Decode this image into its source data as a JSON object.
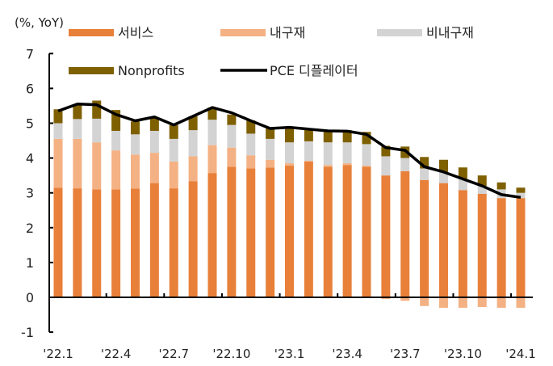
{
  "chart_data": {
    "type": "bar",
    "stacked": true,
    "ylabel": "(%, YoY)",
    "ylim": [
      -1,
      7
    ],
    "yticks": [
      -1,
      0,
      1,
      2,
      3,
      4,
      5,
      6,
      7
    ],
    "grid": false,
    "legend_position": "top",
    "categories": [
      "'22.1",
      "'22.2",
      "'22.3",
      "'22.4",
      "'22.5",
      "'22.6",
      "'22.7",
      "'22.8",
      "'22.9",
      "'22.10",
      "'22.11",
      "'22.12",
      "'23.1",
      "'23.2",
      "'23.3",
      "'23.4",
      "'23.5",
      "'23.6",
      "'23.7",
      "'23.8",
      "'23.9",
      "'23.10",
      "'23.11",
      "'23.12",
      "'24.1"
    ],
    "xtick_labels": [
      "'22.1",
      "'22.4",
      "'22.7",
      "'22.10",
      "'23.1",
      "'23.4",
      "'23.7",
      "'23.10",
      "'24.1"
    ],
    "series": [
      {
        "name": "서비스",
        "type": "bar",
        "color": "#E8803A",
        "values": [
          3.15,
          3.13,
          3.1,
          3.1,
          3.12,
          3.28,
          3.13,
          3.33,
          3.57,
          3.75,
          3.7,
          3.73,
          3.78,
          3.9,
          3.75,
          3.8,
          3.75,
          3.5,
          3.62,
          3.37,
          3.28,
          3.08,
          2.97,
          2.85,
          2.85
        ]
      },
      {
        "name": "내구재",
        "type": "bar",
        "color": "#F4B183",
        "values": [
          1.4,
          1.42,
          1.35,
          1.12,
          0.98,
          0.87,
          0.77,
          0.72,
          0.8,
          0.55,
          0.38,
          0.22,
          0.07,
          0.02,
          0.05,
          0.05,
          0.03,
          -0.05,
          -0.1,
          -0.25,
          -0.3,
          -0.3,
          -0.28,
          -0.3,
          -0.3
        ]
      },
      {
        "name": "비내구재",
        "type": "bar",
        "color": "#D3D3D3",
        "values": [
          0.45,
          0.57,
          0.68,
          0.56,
          0.58,
          0.63,
          0.65,
          0.75,
          0.73,
          0.65,
          0.62,
          0.6,
          0.6,
          0.56,
          0.65,
          0.6,
          0.62,
          0.55,
          0.38,
          0.33,
          0.32,
          0.32,
          0.23,
          0.25,
          0.15
        ]
      },
      {
        "name": "Nonprofits",
        "type": "bar",
        "color": "#7F6000",
        "values": [
          0.4,
          0.4,
          0.52,
          0.6,
          0.37,
          0.37,
          0.4,
          0.4,
          0.35,
          0.3,
          0.38,
          0.3,
          0.42,
          0.34,
          0.3,
          0.35,
          0.35,
          0.3,
          0.33,
          0.33,
          0.35,
          0.33,
          0.3,
          0.2,
          0.15
        ]
      },
      {
        "name": "PCE 디플레이터",
        "type": "line",
        "color": "#000000",
        "values": [
          5.35,
          5.55,
          5.53,
          5.25,
          5.07,
          5.18,
          4.95,
          5.2,
          5.45,
          5.3,
          5.07,
          4.85,
          4.88,
          4.83,
          4.78,
          4.77,
          4.68,
          4.3,
          4.22,
          3.75,
          3.6,
          3.4,
          3.2,
          2.95,
          2.87
        ]
      }
    ]
  }
}
